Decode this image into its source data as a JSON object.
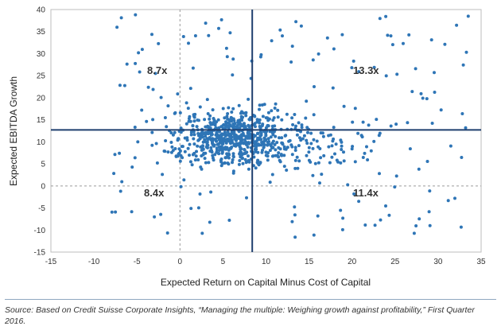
{
  "chart_data": {
    "type": "scatter",
    "xlabel": "Expected Return on Capital Minus Cost of Capital",
    "ylabel": "Expected EBITDA Growth",
    "xlim": [
      -15,
      35
    ],
    "ylim": [
      -15,
      40
    ],
    "xticks": [
      "-15",
      "-10",
      "-5",
      "0",
      "5",
      "10",
      "15",
      "20",
      "25",
      "30",
      "35"
    ],
    "yticks": [
      "40",
      "35",
      "30",
      "25",
      "20",
      "15",
      "10",
      "5",
      "0",
      "-5",
      "-10",
      "-15"
    ],
    "divider_x": 8.4,
    "divider_y": 12.7,
    "zero_lines": "dashed",
    "point_color": "#2e75b6",
    "divider_color": "#1f3f6e",
    "quadrant_labels": [
      {
        "label": "8.7x",
        "position": "top-left"
      },
      {
        "label": "13.3x",
        "position": "top-right"
      },
      {
        "label": "8.4x",
        "position": "bottom-left"
      },
      {
        "label": "11.4x",
        "position": "bottom-right"
      }
    ],
    "points_note": "approximately 900 points; dense cluster around x 0-15, y 5-20"
  },
  "source": "Source: Based on Credit Suisse Corporate Insights, “Managing the multiple: Weighing growth against profitability,” First Quarter 2016."
}
